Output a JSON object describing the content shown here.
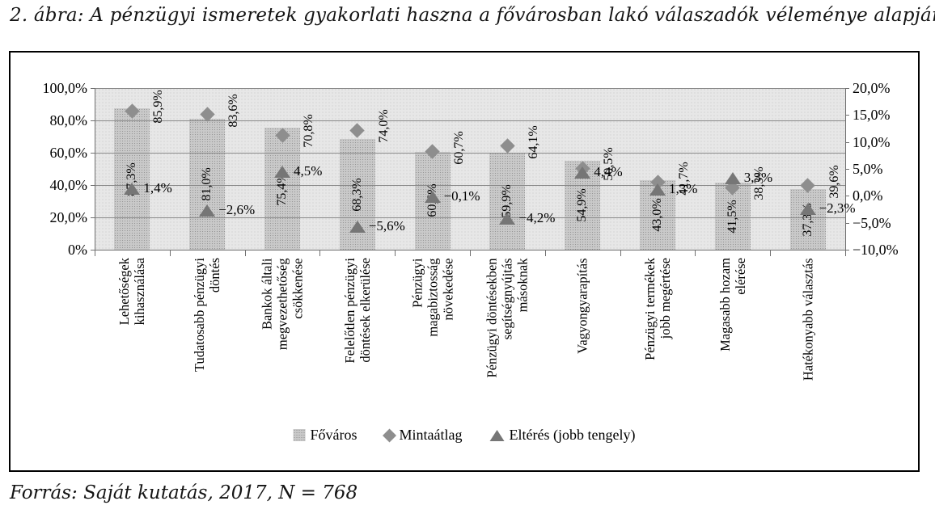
{
  "page": {
    "title": "2. ábra: A pénzügyi ismeretek gyakorlati haszna a fővárosban lakó válaszadók véleménye alapján",
    "source_note": "Forrás: Saját kutatás, 2017, N = 768"
  },
  "chart_data": {
    "type": "bar",
    "subtype": "combo-bar-with-scatter-markers-dual-axis",
    "categories": [
      {
        "name": "Lehetőségek kihasználása",
        "lines": [
          "Lehetőségek",
          "kihasználása"
        ]
      },
      {
        "name": "Tudatosabb pénzügyi döntés",
        "lines": [
          "Tudatosabb pénzügyi",
          "döntés"
        ]
      },
      {
        "name": "Bankok általi megvezethetőség csökkenése",
        "lines": [
          "Bankok általi",
          "megvezethetőség",
          "csökkenése"
        ]
      },
      {
        "name": "Felelőtlen pénzügyi döntések elkerülése",
        "lines": [
          "Felelőtlen pénzügyi",
          "döntések elkerülése"
        ]
      },
      {
        "name": "Pénzügyi magabiztosság növekedése",
        "lines": [
          "Pénzügyi",
          "magabiztosság",
          "növekedése"
        ]
      },
      {
        "name": "Pénzügyi döntésekben segítségnyújtás másoknak",
        "lines": [
          "Pénzügyi döntésekben",
          "segítségnyújtás",
          "másoknak"
        ]
      },
      {
        "name": "Vagyongyarapítás",
        "lines": [
          "Vagyongyarapítás"
        ]
      },
      {
        "name": "Pénzügyi termékek jobb megértése",
        "lines": [
          "Pénzügyi termékek",
          "jobb megértése"
        ]
      },
      {
        "name": "Magasabb hozam elérése",
        "lines": [
          "Magasabb hozam",
          "elérése"
        ]
      },
      {
        "name": "Hatékonyabb választás",
        "lines": [
          "Hatékonyabb választás"
        ]
      }
    ],
    "series": [
      {
        "name": "Főváros",
        "marker": "bar",
        "axis": "left",
        "values": [
          87.3,
          81.0,
          75.4,
          68.3,
          60.6,
          59.9,
          54.9,
          43.0,
          41.5,
          37.3
        ],
        "labels": [
          "87,3%",
          "81,0%",
          "75,4%",
          "68,3%",
          "60,6%",
          "59,9%",
          "54,9%",
          "43,0%",
          "41,5%",
          "37,3%"
        ]
      },
      {
        "name": "Mintaátlag",
        "marker": "diamond",
        "axis": "left",
        "values": [
          85.9,
          83.6,
          70.8,
          74.0,
          60.7,
          64.1,
          50.5,
          41.7,
          38.3,
          39.6
        ],
        "labels": [
          "85,9%",
          "83,6%",
          "70,8%",
          "74,0%",
          "60,7%",
          "64,1%",
          "50,5%",
          "41,7%",
          "38,3%",
          "39,6%"
        ]
      },
      {
        "name": "Eltérés (jobb tengely)",
        "marker": "triangle",
        "axis": "right",
        "values": [
          1.4,
          -2.6,
          4.5,
          -5.6,
          -0.1,
          -4.2,
          4.4,
          1.3,
          3.3,
          -2.3
        ],
        "labels": [
          "1,4%",
          "−2,6%",
          "4,5%",
          "−5,6%",
          "−0,1%",
          "−4,2%",
          "4,4%",
          "1,3%",
          "3,3%",
          "−2,3%"
        ]
      }
    ],
    "left_axis": {
      "min": 0,
      "max": 100,
      "tick_labels": [
        "100,0%",
        "80,0%",
        "60,0%",
        "40,0%",
        "20,0%",
        "0%"
      ]
    },
    "right_axis": {
      "min": -10,
      "max": 20,
      "tick_labels": [
        "20,0%",
        "15,0%",
        "10,0%",
        "5,0%",
        "0,0%",
        "−5,0%",
        "−10,0%"
      ]
    },
    "legend": [
      "Főváros",
      "Mintaátlag",
      "Eltérés (jobb tengely)"
    ],
    "grid": "horizontal-on",
    "legend_position": "bottom-center",
    "colors": {
      "bar": "#c9c9c9",
      "diamond": "#8e8e8e",
      "triangle": "#767676",
      "plot_bg": "#e7e7e7",
      "grid": "#8a8a8a",
      "frame": "#000000"
    }
  }
}
